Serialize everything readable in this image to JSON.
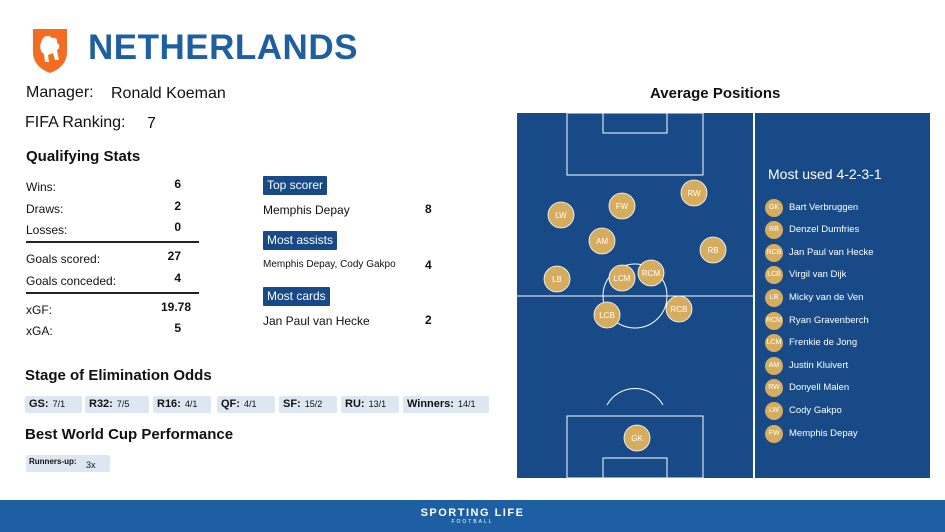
{
  "header": {
    "country": "NETHERLANDS",
    "crest_icon": "lion-crest-icon",
    "crest_color": "#f36c21"
  },
  "info": {
    "manager_label": "Manager:",
    "manager_name": "Ronald Koeman",
    "ranking_label": "FIFA Ranking:",
    "ranking_value": "7"
  },
  "qualifying": {
    "title": "Qualifying Stats",
    "rows": [
      {
        "label": "Wins:",
        "value": "6"
      },
      {
        "label": "Draws:",
        "value": "2"
      },
      {
        "label": "Losses:",
        "value": "0"
      },
      {
        "label": "Goals scored:",
        "value": "27"
      },
      {
        "label": "Goals conceded:",
        "value": "4"
      },
      {
        "label": "xGF:",
        "value": "19.78"
      },
      {
        "label": "xGA:",
        "value": "5"
      }
    ]
  },
  "leaders": [
    {
      "tag": "Top scorer",
      "player": "Memphis Depay",
      "value": "8"
    },
    {
      "tag": "Most assists",
      "player": "Memphis Depay, Cody Gakpo",
      "value": "4"
    },
    {
      "tag": "Most cards",
      "player": "Jan Paul van Hecke",
      "value": "2"
    }
  ],
  "odds": {
    "title": "Stage of Elimination Odds",
    "items": [
      {
        "stage": "GS:",
        "odds": "7/1"
      },
      {
        "stage": "R32:",
        "odds": "7/5"
      },
      {
        "stage": "R16:",
        "odds": "4/1"
      },
      {
        "stage": "QF:",
        "odds": "4/1"
      },
      {
        "stage": "SF:",
        "odds": "15/2"
      },
      {
        "stage": "RU:",
        "odds": "13/1"
      },
      {
        "stage": "Winners:",
        "odds": "14/1"
      }
    ]
  },
  "best": {
    "title": "Best World Cup Performance",
    "label": "Runners-up:",
    "value": "3x"
  },
  "positions": {
    "title": "Average Positions",
    "formation_title": "Most used 4-2-3-1",
    "players": [
      {
        "pos": "GK",
        "name": "Bart Verbruggen"
      },
      {
        "pos": "RB",
        "name": "Denzel Dumfries"
      },
      {
        "pos": "RCB",
        "name": "Jan Paul van Hecke"
      },
      {
        "pos": "LCB",
        "name": "Virgil van Dijk"
      },
      {
        "pos": "LB",
        "name": "Micky van de Ven"
      },
      {
        "pos": "RCM",
        "name": "Ryan Gravenberch"
      },
      {
        "pos": "LCM",
        "name": "Frenkie de Jong"
      },
      {
        "pos": "AM",
        "name": "Justin Kluivert"
      },
      {
        "pos": "RW",
        "name": "Donyell Malen"
      },
      {
        "pos": "LW",
        "name": "Cody Gakpo"
      },
      {
        "pos": "FW",
        "name": "Memphis Depay"
      }
    ],
    "pitch_color": "#174a87",
    "token_color": "#d6ad5f"
  },
  "footer": {
    "brand": "SPORTING LIFE",
    "sub": "FOOTBALL"
  }
}
